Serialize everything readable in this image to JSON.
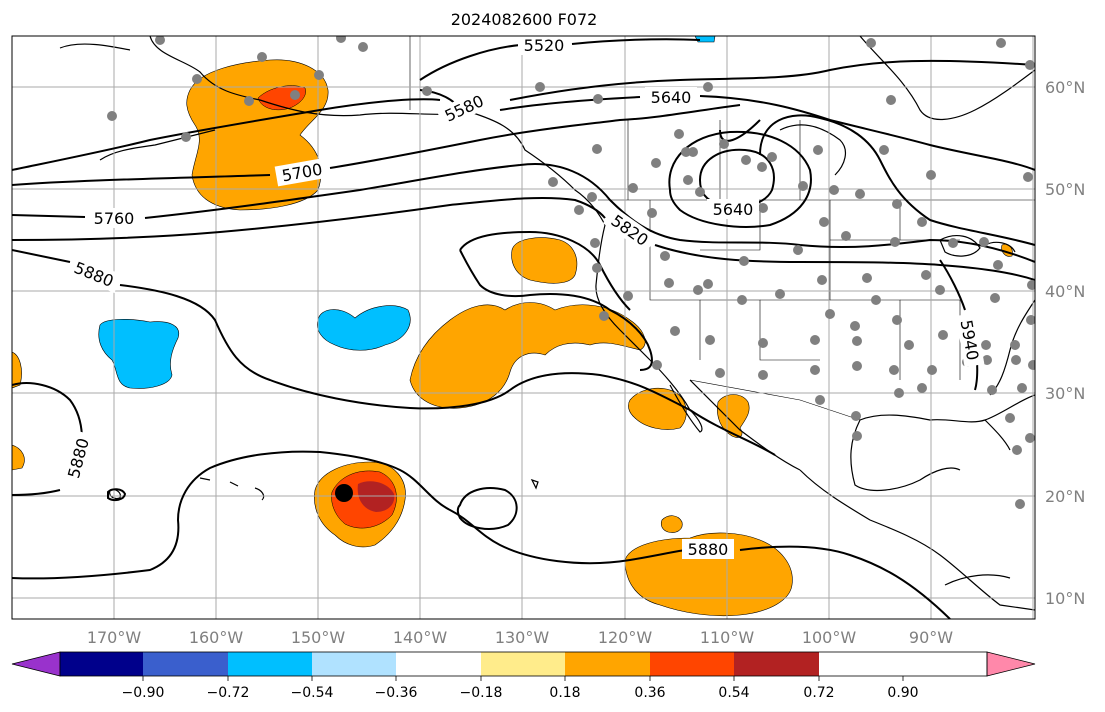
{
  "title": "2024082600 F072",
  "latitude_labels": [
    "60°N",
    "50°N",
    "40°N",
    "30°N",
    "20°N",
    "10°N"
  ],
  "longitude_labels": [
    "170°W",
    "160°W",
    "150°W",
    "140°W",
    "130°W",
    "120°W",
    "110°W",
    "100°W",
    "90°W"
  ],
  "contour_labels": [
    {
      "text": "5520"
    },
    {
      "text": "5580"
    },
    {
      "text": "5640"
    },
    {
      "text": "5640"
    },
    {
      "text": "5700"
    },
    {
      "text": "5760"
    },
    {
      "text": "5820"
    },
    {
      "text": "5880"
    },
    {
      "text": "5880"
    },
    {
      "text": "5880"
    },
    {
      "text": "5940"
    }
  ],
  "colorbar": {
    "tick_labels": [
      "−0.90",
      "−0.72",
      "−0.54",
      "−0.36",
      "−0.18",
      "0.18",
      "0.36",
      "0.54",
      "0.72",
      "0.90"
    ],
    "colors": [
      "#9932cc",
      "#00008b",
      "#3a5fcd",
      "#00bfff",
      "#b0e2ff",
      "#ffffff",
      "#ffec8b",
      "#ffa500",
      "#ff4500",
      "#b22222",
      "#ff88aa"
    ]
  },
  "colors": {
    "anomaly_pos_054": "#ffa500",
    "anomaly_pos_072": "#ff4500",
    "anomaly_pos_090": "#b22222",
    "anomaly_neg_036": "#00bfff",
    "station_dot": "#808080",
    "storm_marker": "#000000"
  }
}
